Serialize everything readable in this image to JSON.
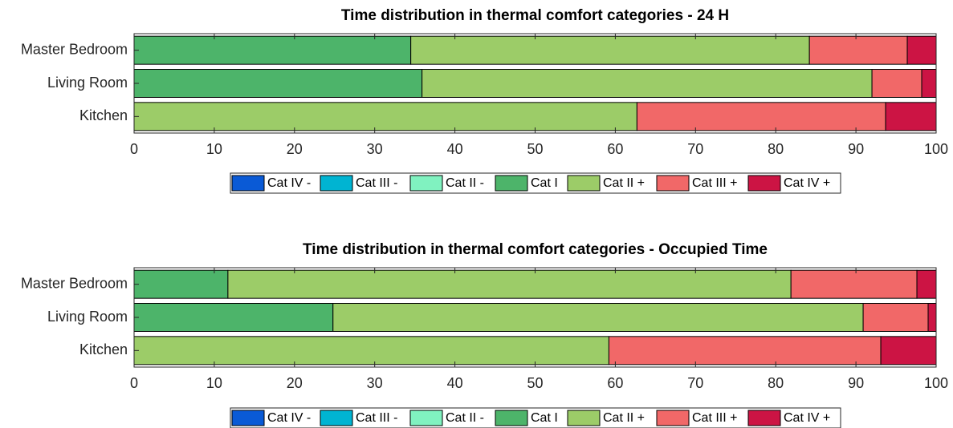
{
  "chart_data": [
    {
      "type": "bar",
      "orientation": "horizontal",
      "stacked": true,
      "legend": "bottom",
      "title": "Time distribution in thermal comfort categories - 24 H",
      "categories": [
        "Master Bedroom",
        "Living Room",
        "Kitchen"
      ],
      "series": [
        {
          "name": "Cat IV -",
          "color": "#0a5ad6",
          "values": [
            0,
            0,
            0
          ]
        },
        {
          "name": "Cat III -",
          "color": "#00b4d2",
          "values": [
            0,
            0,
            0
          ]
        },
        {
          "name": "Cat II -",
          "color": "#80f2c0",
          "values": [
            0,
            0,
            0
          ]
        },
        {
          "name": "Cat I",
          "color": "#4db46a",
          "values": [
            34.5,
            35.9,
            0
          ]
        },
        {
          "name": "Cat II +",
          "color": "#9ccc68",
          "values": [
            49.7,
            56.1,
            62.7
          ]
        },
        {
          "name": "Cat III +",
          "color": "#f16868",
          "values": [
            12.2,
            6.2,
            31
          ]
        },
        {
          "name": "Cat IV +",
          "color": "#cc1444",
          "values": [
            3.6,
            1.8,
            6.3
          ]
        }
      ],
      "xlim": [
        0,
        100
      ],
      "xticks": [
        0,
        10,
        20,
        30,
        40,
        50,
        60,
        70,
        80,
        90,
        100
      ]
    },
    {
      "type": "bar",
      "orientation": "horizontal",
      "stacked": true,
      "legend": "bottom",
      "title": "Time distribution in thermal comfort categories - Occupied Time",
      "categories": [
        "Master Bedroom",
        "Living Room",
        "Kitchen"
      ],
      "series": [
        {
          "name": "Cat IV -",
          "color": "#0a5ad6",
          "values": [
            0,
            0,
            0
          ]
        },
        {
          "name": "Cat III -",
          "color": "#00b4d2",
          "values": [
            0,
            0,
            0
          ]
        },
        {
          "name": "Cat II -",
          "color": "#80f2c0",
          "values": [
            0,
            0,
            0
          ]
        },
        {
          "name": "Cat I",
          "color": "#4db46a",
          "values": [
            11.7,
            24.8,
            0
          ]
        },
        {
          "name": "Cat II +",
          "color": "#9ccc68",
          "values": [
            70.2,
            66.1,
            59.2
          ]
        },
        {
          "name": "Cat III +",
          "color": "#f16868",
          "values": [
            15.7,
            8.1,
            33.9
          ]
        },
        {
          "name": "Cat IV +",
          "color": "#cc1444",
          "values": [
            2.4,
            1,
            6.9
          ]
        }
      ],
      "xlim": [
        0,
        100
      ],
      "xticks": [
        0,
        10,
        20,
        30,
        40,
        50,
        60,
        70,
        80,
        90,
        100
      ]
    }
  ]
}
